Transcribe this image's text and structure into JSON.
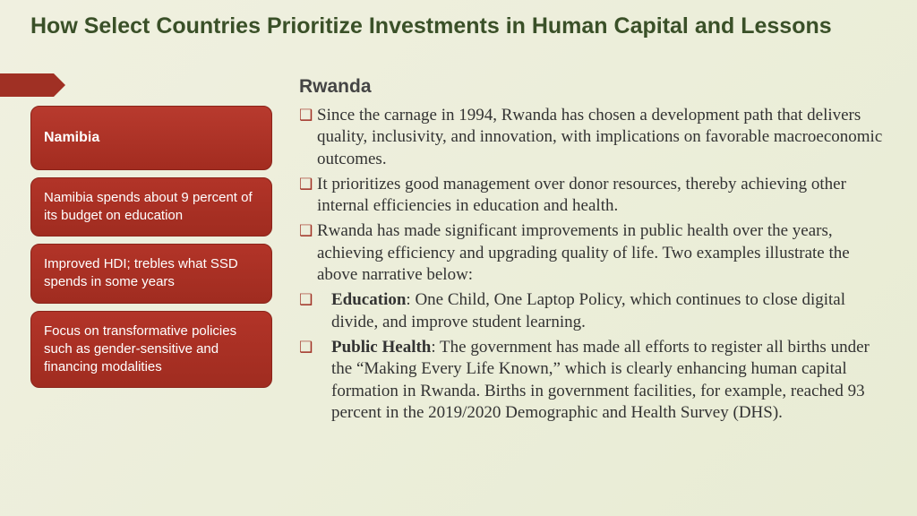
{
  "title": "How Select Countries Prioritize Investments in Human Capital and Lessons",
  "colors": {
    "title": "#3a5028",
    "ribbon": "#a03024",
    "card_bg_top": "#b83a2e",
    "card_bg_bottom": "#a02c20",
    "card_border": "#8a241a",
    "card_text": "#ffffff",
    "bullet": "#a03024",
    "body_text": "#333333",
    "page_bg_a": "#f0f0e0",
    "page_bg_b": "#e8ecd4"
  },
  "left": {
    "heading": "Namibia",
    "cards": [
      "Namibia spends about 9 percent of its budget on education",
      "Improved HDI; trebles what SSD spends in some years",
      "Focus on transformative policies such as gender-sensitive and financing modalities"
    ]
  },
  "right": {
    "heading": "Rwanda",
    "bullets": [
      {
        "text": "Since the carnage in 1994, Rwanda has chosen a development path that delivers quality, inclusivity, and innovation, with implications on favorable macroeconomic outcomes."
      },
      {
        "text": "It prioritizes good management over donor resources, thereby achieving other internal efficiencies in education and health."
      },
      {
        "text": "Rwanda has made significant improvements in public health over the years, achieving efficiency and upgrading quality of life. Two examples illustrate the above narrative below:"
      },
      {
        "bold": "Education",
        "text": ":  One Child, One Laptop Policy, which continues to close digital divide, and improve student learning.",
        "indent": true
      },
      {
        "bold": "Public Health",
        "text": ": The government has made all efforts to register all births under the “Making Every Life Known,” which is clearly enhancing human capital formation in Rwanda. Births in government facilities, for example, reached 93 percent in the 2019/2020 Demographic and Health Survey (DHS).",
        "indent": true
      }
    ]
  }
}
